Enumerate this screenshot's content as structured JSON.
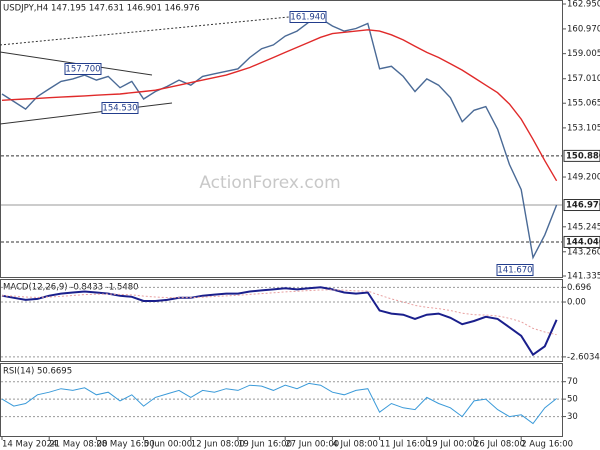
{
  "chart_data": [
    {
      "type": "line",
      "title": "USDJPY,H4 147.195 147.631 146.901 146.976",
      "watermark": "ActionForex.com",
      "series": [
        {
          "color": "#4a6a96",
          "values": [
            155.8,
            155.2,
            154.6,
            155.6,
            156.2,
            156.8,
            157.0,
            157.3,
            156.9,
            157.2,
            156.3,
            156.8,
            155.4,
            156.0,
            156.4,
            156.9,
            156.5,
            157.2,
            157.4,
            157.6,
            157.8,
            158.7,
            159.4,
            159.7,
            160.4,
            160.8,
            161.5,
            161.8,
            161.2,
            160.8,
            161.0,
            161.4,
            157.8,
            158.0,
            157.2,
            156.0,
            157.0,
            156.5,
            155.5,
            153.6,
            154.5,
            154.8,
            153.0,
            150.2,
            148.2,
            142.8,
            144.6,
            146.976
          ]
        },
        {
          "color": "#e02a2a",
          "values": [
            155.3,
            155.35,
            155.4,
            155.45,
            155.5,
            155.55,
            155.6,
            155.65,
            155.7,
            155.75,
            155.8,
            155.9,
            156.0,
            156.1,
            156.3,
            156.5,
            156.7,
            156.9,
            157.1,
            157.3,
            157.6,
            157.9,
            158.3,
            158.7,
            159.1,
            159.5,
            159.9,
            160.3,
            160.6,
            160.7,
            160.8,
            160.9,
            160.8,
            160.5,
            160.1,
            159.6,
            159.1,
            158.7,
            158.2,
            157.7,
            157.1,
            156.5,
            155.9,
            155.0,
            153.8,
            152.2,
            150.5,
            148.9
          ]
        }
      ],
      "ylim": [
        141.335,
        162.95
      ],
      "yticks": [
        {
          "value": 162.95,
          "label": "162.950"
        },
        {
          "value": 160.97,
          "label": "160.970"
        },
        {
          "value": 159.005,
          "label": "159.005"
        },
        {
          "value": 157.01,
          "label": "157.010"
        },
        {
          "value": 155.065,
          "label": "155.065"
        },
        {
          "value": 153.105,
          "label": "153.105"
        },
        {
          "value": 149.2,
          "label": "149.200"
        },
        {
          "value": 145.245,
          "label": "145.245"
        },
        {
          "value": 143.26,
          "label": "143.260"
        },
        {
          "value": 141.335,
          "label": "141.335"
        }
      ],
      "levels": [
        {
          "value": 150.88,
          "label": "150.880",
          "style": "dashed"
        },
        {
          "value": 146.976,
          "label": "146.976",
          "style": "solid"
        },
        {
          "value": 144.04,
          "label": "144.040",
          "style": "dashed"
        }
      ],
      "annotations": [
        "161.940",
        "157.700",
        "154.530",
        "141.670"
      ],
      "grid": false
    },
    {
      "type": "line",
      "title": "MACD(12,26,9) -0.8433 -1.5480",
      "series": [
        {
          "color": "#1a1f8c",
          "width": 2,
          "values": [
            0.3,
            0.2,
            0.1,
            0.15,
            0.3,
            0.4,
            0.45,
            0.5,
            0.45,
            0.4,
            0.3,
            0.25,
            0.05,
            0.05,
            0.1,
            0.2,
            0.2,
            0.3,
            0.35,
            0.4,
            0.4,
            0.5,
            0.55,
            0.6,
            0.65,
            0.6,
            0.65,
            0.7,
            0.6,
            0.45,
            0.4,
            0.45,
            -0.4,
            -0.55,
            -0.6,
            -0.8,
            -0.6,
            -0.55,
            -0.75,
            -1.05,
            -0.9,
            -0.7,
            -0.8,
            -1.2,
            -1.6,
            -2.5,
            -2.1,
            -0.8433
          ]
        },
        {
          "color": "#e8a0a0",
          "width": 1,
          "style": "dotted",
          "values": [
            0.3,
            0.28,
            0.24,
            0.22,
            0.24,
            0.27,
            0.31,
            0.35,
            0.37,
            0.38,
            0.36,
            0.34,
            0.28,
            0.24,
            0.21,
            0.21,
            0.21,
            0.23,
            0.26,
            0.29,
            0.32,
            0.36,
            0.4,
            0.44,
            0.48,
            0.51,
            0.54,
            0.57,
            0.58,
            0.56,
            0.53,
            0.52,
            0.33,
            0.15,
            0.0,
            -0.16,
            -0.25,
            -0.31,
            -0.4,
            -0.53,
            -0.6,
            -0.62,
            -0.66,
            -0.77,
            -0.94,
            -1.25,
            -1.42,
            -1.548
          ]
        }
      ],
      "ylim": [
        -2.75,
        0.95
      ],
      "yticks": [
        0.696,
        {
          "value": 0,
          "label": "0.00"
        },
        -2.6034
      ],
      "grid": true
    },
    {
      "type": "line",
      "title": "RSI(14) 50.6695",
      "series": [
        {
          "color": "#3a9ad9",
          "width": 1,
          "values": [
            50,
            42,
            45,
            55,
            58,
            62,
            60,
            63,
            55,
            58,
            48,
            55,
            42,
            52,
            56,
            60,
            52,
            60,
            58,
            62,
            60,
            66,
            65,
            60,
            66,
            62,
            68,
            66,
            58,
            55,
            60,
            62,
            35,
            45,
            40,
            38,
            52,
            45,
            40,
            30,
            48,
            50,
            38,
            30,
            32,
            22,
            40,
            50.6695
          ]
        }
      ],
      "ylim": [
        10,
        88
      ],
      "yticks": [
        70,
        50,
        30
      ],
      "grid": true,
      "categories": [
        "14 May 2024",
        null,
        null,
        null,
        "21 May 08:00",
        null,
        null,
        null,
        "28 May 16:00",
        null,
        null,
        null,
        "5 Jun 00:00",
        null,
        null,
        null,
        "12 Jun 08:00",
        null,
        null,
        null,
        "19 Jun 16:00",
        null,
        null,
        null,
        "27 Jun 00:00",
        null,
        null,
        null,
        "4 Jul 08:00",
        null,
        null,
        null,
        "11 Jul 16:00",
        null,
        null,
        null,
        "19 Jul 00:00",
        null,
        null,
        null,
        "26 Jul 08:00",
        null,
        null,
        null,
        "2 Aug 16:00",
        null,
        null,
        null
      ]
    }
  ]
}
